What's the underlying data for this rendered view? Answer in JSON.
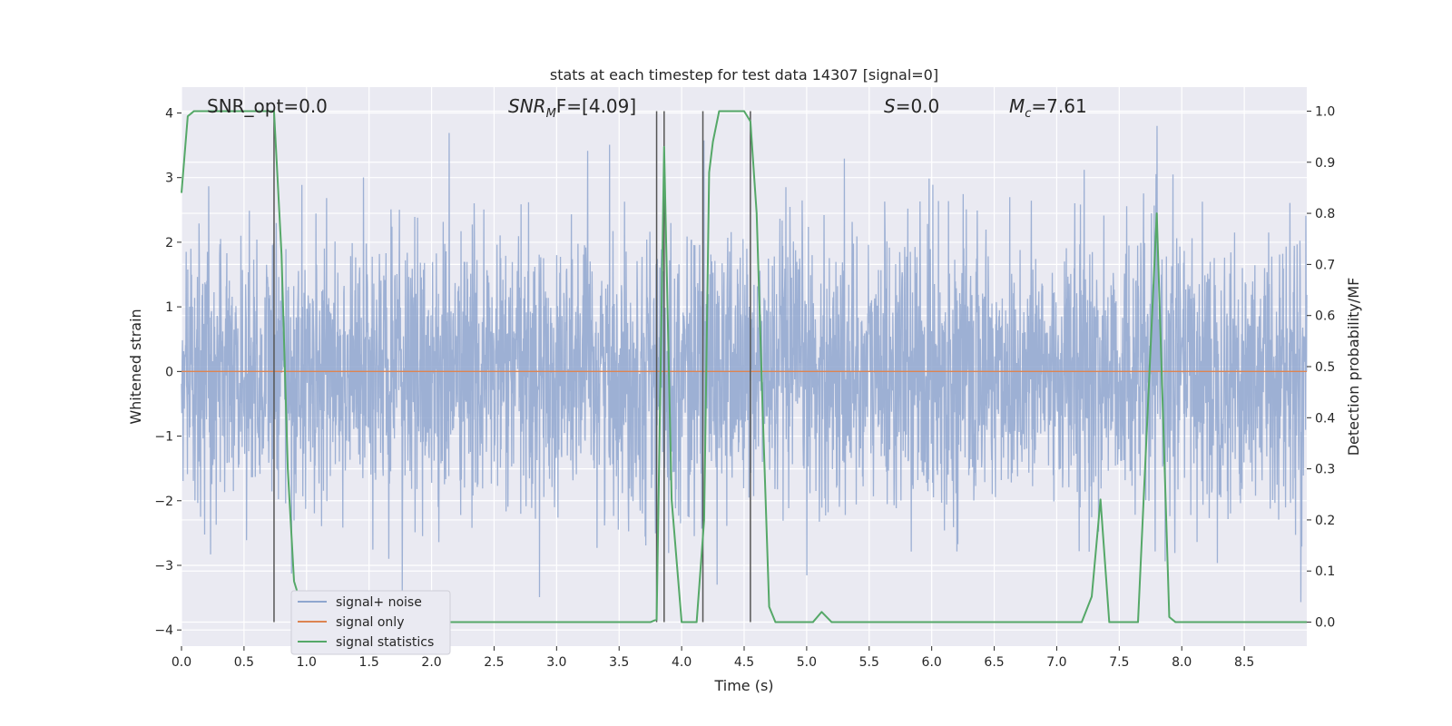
{
  "chart_data": {
    "type": "line",
    "title": "stats at each timestep for test data 14307 [signal=0]",
    "xlabel": "Time (s)",
    "ylabel": "Whitened strain",
    "y2label": "Detection probability/MF",
    "xlim": [
      0.0,
      9.0
    ],
    "ylim": [
      -4.25,
      4.4
    ],
    "y2lim": [
      -0.047,
      1.047
    ],
    "x_ticks": [
      "0.0",
      "0.5",
      "1.0",
      "1.5",
      "2.0",
      "2.5",
      "3.0",
      "3.5",
      "4.0",
      "4.5",
      "5.0",
      "5.5",
      "6.0",
      "6.5",
      "7.0",
      "7.5",
      "8.0",
      "8.5"
    ],
    "y_ticks": [
      "4",
      "3",
      "2",
      "1",
      "0",
      "−1",
      "−2",
      "−3",
      "−4"
    ],
    "y2_ticks": [
      "1.0",
      "0.9",
      "0.8",
      "0.7",
      "0.6",
      "0.5",
      "0.4",
      "0.3",
      "0.2",
      "0.1",
      "0.0"
    ],
    "grid": true,
    "background": "#eaeaf2",
    "legend_position": "bottom-left",
    "annotations": {
      "snr_opt": {
        "prefix": "SNR_opt=",
        "value": "0.0"
      },
      "snr_mf": {
        "sym": "SNR",
        "sub": "M",
        "rest": "F=[4.09]"
      },
      "s": {
        "sym": "S",
        "rest": "=0.0"
      },
      "mc": {
        "sym": "M",
        "sub": "c",
        "rest": "=7.61"
      }
    },
    "series": [
      {
        "name": "signal+ noise",
        "axis": "left",
        "color": "#8fa6cf",
        "description_values": {
          "typical_band": [
            -1.5,
            1.7
          ],
          "peak_max": 3.8,
          "peak_min": -3.6
        }
      },
      {
        "name": "signal only",
        "axis": "left",
        "color": "#dd8452",
        "x": [
          0.0,
          9.0
        ],
        "y": [
          0.0,
          0.0
        ]
      },
      {
        "name": "signal statistics",
        "axis": "right",
        "color": "#55a868",
        "x": [
          0.0,
          0.05,
          0.1,
          0.7,
          0.74,
          0.8,
          0.85,
          0.9,
          1.0,
          3.5,
          3.75,
          3.8,
          3.86,
          3.92,
          4.0,
          4.12,
          4.18,
          4.22,
          4.25,
          4.3,
          4.5,
          4.55,
          4.6,
          4.65,
          4.7,
          4.75,
          5.05,
          5.12,
          5.2,
          7.2,
          7.28,
          7.35,
          7.42,
          7.65,
          7.8,
          7.9,
          7.95,
          9.0
        ],
        "y": [
          0.84,
          0.99,
          1.0,
          1.0,
          1.0,
          0.72,
          0.3,
          0.08,
          0.0,
          0.0,
          0.0,
          0.005,
          0.93,
          0.24,
          0.0,
          0.0,
          0.2,
          0.88,
          0.94,
          1.0,
          1.0,
          0.98,
          0.8,
          0.4,
          0.03,
          0.0,
          0.0,
          0.02,
          0.0,
          0.0,
          0.05,
          0.24,
          0.0,
          0.0,
          0.8,
          0.01,
          0.0,
          0.0
        ]
      }
    ],
    "vlines": [
      0.74,
      3.8,
      3.86,
      4.17,
      4.55
    ]
  }
}
